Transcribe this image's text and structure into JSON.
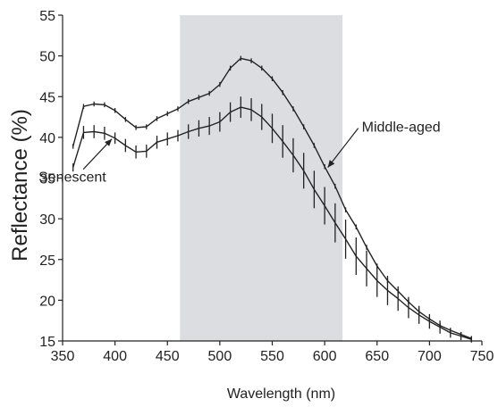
{
  "chart_data": {
    "type": "line",
    "xlabel": "Wavelength (nm)",
    "ylabel": "Reflectance (%)",
    "xlim": [
      350,
      750
    ],
    "ylim": [
      15,
      55
    ],
    "xticks": [
      350,
      400,
      450,
      500,
      550,
      600,
      650,
      700,
      750
    ],
    "yticks": [
      15,
      20,
      25,
      30,
      35,
      40,
      45,
      50,
      55
    ],
    "grid": false,
    "legend": "none",
    "shaded_region": [
      462,
      617
    ],
    "colors": {
      "line": "#222222",
      "shade": "#dcdde0"
    },
    "series": [
      {
        "name": "Middle-aged",
        "x": [
          360,
          370,
          380,
          390,
          400,
          410,
          420,
          430,
          440,
          450,
          460,
          470,
          480,
          490,
          500,
          510,
          520,
          530,
          540,
          550,
          560,
          570,
          580,
          590,
          600,
          610,
          620,
          630,
          640,
          650,
          660,
          670,
          680,
          690,
          700,
          710,
          720,
          730,
          740
        ],
        "y": [
          38.9,
          43.8,
          44.1,
          44.0,
          43.3,
          42.2,
          41.2,
          41.3,
          42.3,
          42.9,
          43.5,
          44.4,
          44.9,
          45.4,
          46.5,
          48.5,
          49.7,
          49.4,
          48.5,
          47.2,
          45.5,
          43.5,
          41.3,
          39.0,
          36.4,
          34.0,
          31.1,
          29.0,
          26.5,
          24.2,
          22.4,
          21.1,
          19.8,
          18.6,
          17.7,
          16.9,
          16.3,
          15.8,
          15.3
        ],
        "err": [
          0.3,
          0.3,
          0.3,
          0.3,
          0.3,
          0.3,
          0.3,
          0.3,
          0.3,
          0.3,
          0.3,
          0.3,
          0.3,
          0.3,
          0.3,
          0.3,
          0.3,
          0.3,
          0.3,
          0.3,
          0.3,
          0.3,
          0.3,
          0.3,
          0.3,
          0.3,
          0.3,
          0.3,
          0.3,
          0.3,
          0.3,
          0.3,
          0.3,
          0.3,
          0.3,
          0.3,
          0.3,
          0.3,
          0.3
        ]
      },
      {
        "name": "Senescent",
        "x": [
          360,
          370,
          380,
          390,
          400,
          410,
          420,
          430,
          440,
          450,
          460,
          470,
          480,
          490,
          500,
          510,
          520,
          530,
          540,
          550,
          560,
          570,
          580,
          590,
          600,
          610,
          620,
          630,
          640,
          650,
          660,
          670,
          680,
          690,
          700,
          710,
          720,
          730,
          740
        ],
        "y": [
          36.3,
          40.6,
          40.7,
          40.5,
          39.9,
          39.0,
          38.2,
          38.3,
          39.4,
          39.8,
          40.2,
          40.7,
          41.1,
          41.4,
          41.9,
          43.1,
          43.7,
          43.4,
          42.5,
          41.1,
          39.5,
          37.8,
          35.9,
          33.6,
          31.6,
          29.5,
          27.5,
          25.4,
          23.9,
          22.4,
          21.2,
          20.2,
          19.1,
          18.2,
          17.4,
          16.7,
          16.0,
          15.6,
          15.2
        ],
        "err": [
          0.5,
          0.8,
          0.8,
          0.8,
          0.7,
          0.8,
          0.8,
          0.8,
          0.8,
          0.8,
          0.7,
          0.9,
          1.0,
          1.1,
          1.2,
          1.2,
          1.3,
          1.4,
          1.6,
          1.8,
          2.0,
          2.1,
          2.2,
          2.3,
          2.3,
          2.4,
          2.4,
          2.3,
          2.2,
          2.0,
          1.8,
          1.5,
          1.3,
          1.1,
          0.9,
          0.8,
          0.6,
          0.5,
          0.4
        ]
      }
    ],
    "annotations": [
      {
        "text": "Middle-aged",
        "points_to": {
          "series": "Middle-aged",
          "x": 603,
          "y": 36.3
        }
      },
      {
        "text": "Senescent",
        "points_to": {
          "series": "Senescent",
          "x": 397,
          "y": 39.8
        }
      }
    ]
  }
}
